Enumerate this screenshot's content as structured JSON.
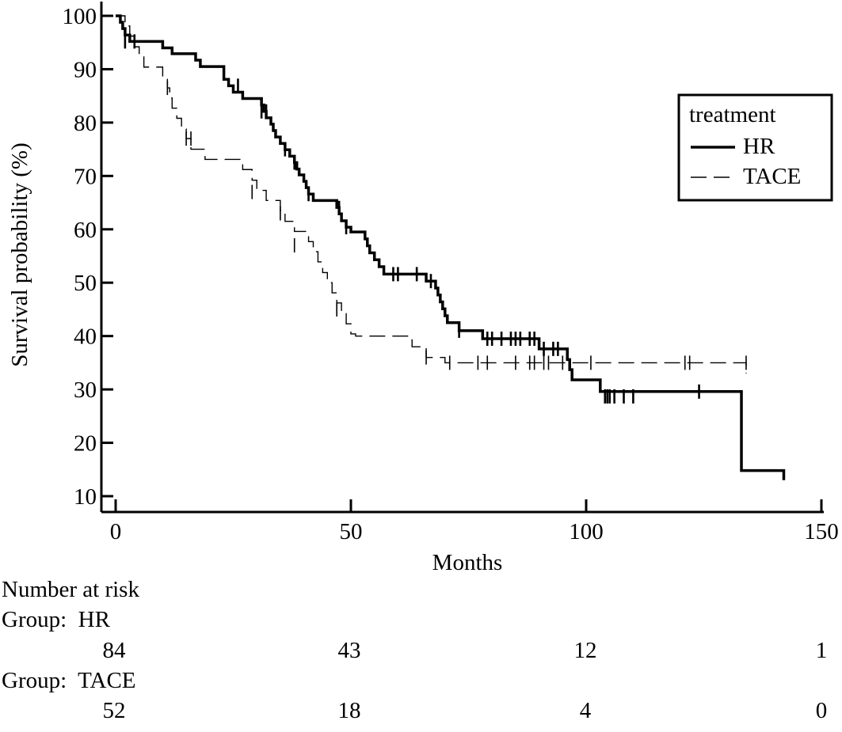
{
  "chart_data": {
    "type": "line",
    "subtype": "kaplan-meier",
    "xlabel": "Months",
    "ylabel": "Survival probability (%)",
    "xlim": [
      0,
      150
    ],
    "ylim": [
      10,
      100
    ],
    "xticks": [
      0,
      50,
      100,
      150
    ],
    "yticks": [
      10,
      20,
      30,
      40,
      50,
      60,
      70,
      80,
      90,
      100
    ],
    "grid": false,
    "legend": {
      "title": "treatment",
      "position": "top-right"
    },
    "series": [
      {
        "name": "HR",
        "style": "solid-thick",
        "color": "#000000",
        "steps": [
          [
            0,
            100
          ],
          [
            1,
            98.8
          ],
          [
            1.5,
            97.6
          ],
          [
            2,
            96.4
          ],
          [
            3,
            95.2
          ],
          [
            10,
            94.0
          ],
          [
            12,
            92.9
          ],
          [
            17,
            91.7
          ],
          [
            18,
            90.5
          ],
          [
            23,
            88.1
          ],
          [
            24,
            86.9
          ],
          [
            25,
            85.7
          ],
          [
            27,
            84.5
          ],
          [
            31,
            83.3
          ],
          [
            31.5,
            82.1
          ],
          [
            32,
            80.9
          ],
          [
            33,
            79.7
          ],
          [
            33.5,
            78.5
          ],
          [
            34,
            77.3
          ],
          [
            35,
            76.1
          ],
          [
            36,
            74.9
          ],
          [
            37,
            73.7
          ],
          [
            38,
            72.5
          ],
          [
            38.5,
            71.3
          ],
          [
            39,
            70.2
          ],
          [
            40,
            69.0
          ],
          [
            40.5,
            67.8
          ],
          [
            41,
            66.6
          ],
          [
            42,
            65.4
          ],
          [
            47,
            64.1
          ],
          [
            47.5,
            62.9
          ],
          [
            48,
            61.6
          ],
          [
            49,
            60.4
          ],
          [
            50,
            59.5
          ],
          [
            53,
            58.2
          ],
          [
            53.5,
            56.9
          ],
          [
            54,
            55.6
          ],
          [
            55,
            54.3
          ],
          [
            56,
            53.0
          ],
          [
            57,
            51.6
          ],
          [
            66,
            50.3
          ],
          [
            68,
            49.0
          ],
          [
            68.5,
            47.7
          ],
          [
            69,
            46.4
          ],
          [
            69.5,
            45.1
          ],
          [
            70,
            43.8
          ],
          [
            70.5,
            42.5
          ],
          [
            73,
            41.0
          ],
          [
            78,
            39.5
          ],
          [
            90,
            37.6
          ],
          [
            96,
            35.6
          ],
          [
            96.5,
            33.7
          ],
          [
            97,
            31.8
          ],
          [
            103,
            29.6
          ],
          [
            133,
            29.6
          ],
          [
            133,
            14.8
          ],
          [
            142,
            14.8
          ],
          [
            142,
            13
          ]
        ],
        "censored": [
          [
            2,
            95.2
          ],
          [
            4,
            95.2
          ],
          [
            26,
            86.9
          ],
          [
            31,
            82.1
          ],
          [
            32,
            82.1
          ],
          [
            36,
            75
          ],
          [
            38,
            72.5
          ],
          [
            41,
            66.6
          ],
          [
            47.5,
            64
          ],
          [
            49,
            60.4
          ],
          [
            59,
            51.6
          ],
          [
            60,
            51.6
          ],
          [
            64,
            51.6
          ],
          [
            67,
            50.3
          ],
          [
            73,
            41
          ],
          [
            79,
            39.5
          ],
          [
            80,
            39.5
          ],
          [
            82,
            39.5
          ],
          [
            84,
            39.5
          ],
          [
            85,
            39.5
          ],
          [
            86,
            39.5
          ],
          [
            88,
            39.5
          ],
          [
            89,
            39.5
          ],
          [
            91,
            37.6
          ],
          [
            93,
            37.6
          ],
          [
            94,
            37.6
          ],
          [
            104,
            28.7
          ],
          [
            104.5,
            28.7
          ],
          [
            105,
            28.7
          ],
          [
            106,
            28.7
          ],
          [
            108,
            28.7
          ],
          [
            110,
            28.7
          ],
          [
            124,
            29.6
          ]
        ]
      },
      {
        "name": "TACE",
        "style": "dashed-thin",
        "color": "#000000",
        "steps": [
          [
            0,
            100
          ],
          [
            2,
            98.1
          ],
          [
            3,
            96.2
          ],
          [
            4,
            94.2
          ],
          [
            5,
            92.3
          ],
          [
            6,
            90.4
          ],
          [
            10,
            88.5
          ],
          [
            11,
            86.5
          ],
          [
            11.5,
            84.6
          ],
          [
            12,
            82.7
          ],
          [
            13,
            80.8
          ],
          [
            14,
            78.8
          ],
          [
            15,
            77
          ],
          [
            16,
            75
          ],
          [
            19,
            73.1
          ],
          [
            27,
            71.2
          ],
          [
            29,
            69.2
          ],
          [
            30,
            67.3
          ],
          [
            32,
            65.4
          ],
          [
            35,
            63.5
          ],
          [
            36,
            61.5
          ],
          [
            38,
            59.6
          ],
          [
            41,
            57.7
          ],
          [
            42,
            55.8
          ],
          [
            43,
            53.9
          ],
          [
            44,
            51.9
          ],
          [
            45,
            50
          ],
          [
            46,
            48.1
          ],
          [
            47,
            46.2
          ],
          [
            48,
            44.2
          ],
          [
            49,
            42.3
          ],
          [
            50,
            40.4
          ],
          [
            51,
            40
          ],
          [
            63,
            38
          ],
          [
            66,
            36
          ],
          [
            70,
            35
          ],
          [
            134,
            35
          ],
          [
            134,
            33
          ]
        ],
        "censored": [
          [
            11,
            86.5
          ],
          [
            15,
            77
          ],
          [
            16,
            77
          ],
          [
            29,
            67
          ],
          [
            35,
            63
          ],
          [
            38,
            57
          ],
          [
            47,
            45
          ],
          [
            66,
            36
          ],
          [
            71,
            35
          ],
          [
            77,
            35
          ],
          [
            79,
            35
          ],
          [
            85,
            35
          ],
          [
            88,
            35
          ],
          [
            89,
            35
          ],
          [
            91,
            35
          ],
          [
            92,
            35
          ],
          [
            95,
            35
          ],
          [
            101,
            35
          ],
          [
            121,
            35
          ],
          [
            122,
            35
          ],
          [
            134,
            35
          ]
        ]
      }
    ]
  },
  "risk_table": {
    "title": "Number at risk",
    "groups": [
      {
        "label": "Group:  HR",
        "counts": [
          "84",
          "43",
          "12",
          "1"
        ]
      },
      {
        "label": "Group:  TACE",
        "counts": [
          "52",
          "18",
          "4",
          "0"
        ]
      }
    ]
  }
}
